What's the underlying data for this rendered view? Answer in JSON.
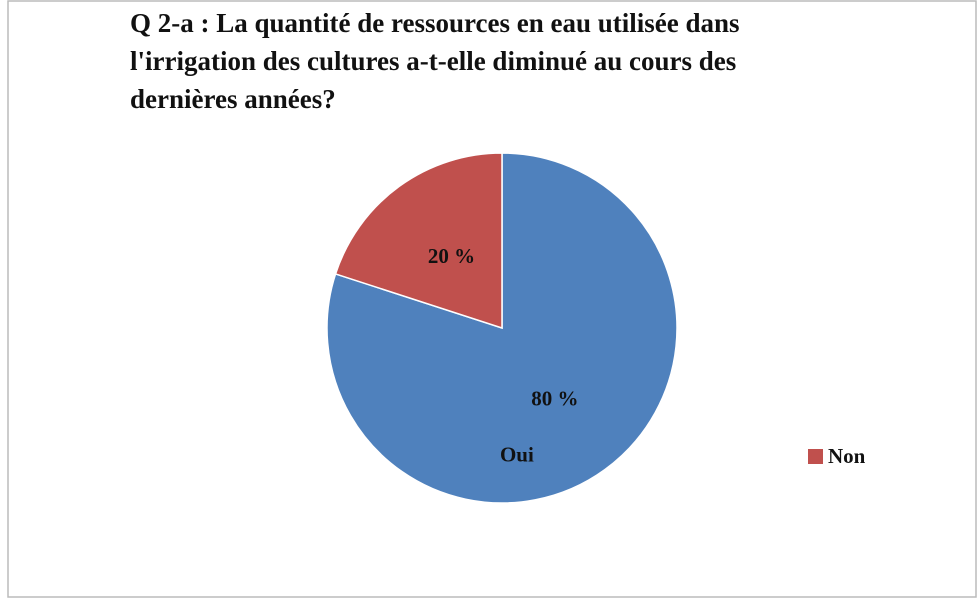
{
  "chart_data": {
    "type": "pie",
    "title": "Q 2-a : La quantité de ressources en eau utilisée dans l'irrigation des cultures a-t-elle diminué au cours des dernières années?",
    "categories": [
      "Oui",
      "Non"
    ],
    "values": [
      80,
      20
    ],
    "value_labels": [
      "80 %",
      "20 %"
    ],
    "colors": [
      "#4f81bd",
      "#c0504d"
    ]
  }
}
